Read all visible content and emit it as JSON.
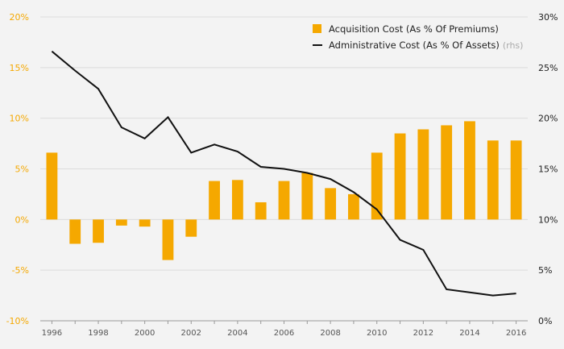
{
  "chart_data": {
    "type": "bar+line",
    "title": "",
    "x": [
      1996,
      1997,
      1998,
      1999,
      2000,
      2001,
      2002,
      2003,
      2004,
      2005,
      2006,
      2007,
      2008,
      2009,
      2010,
      2011,
      2012,
      2013,
      2014,
      2015,
      2016
    ],
    "x_tick_labels": [
      "1996",
      "1998",
      "2000",
      "2002",
      "2004",
      "2006",
      "2008",
      "2010",
      "2012",
      "2014",
      "2016"
    ],
    "series": [
      {
        "name": "Acquisition Cost (As % Of Premiums)",
        "type": "bar",
        "axis": "left",
        "color": "#f5a800",
        "values": [
          6.6,
          -2.4,
          -2.3,
          -0.6,
          -0.7,
          -4.0,
          -1.7,
          3.8,
          3.9,
          1.7,
          3.8,
          4.6,
          3.1,
          2.5,
          6.6,
          8.5,
          8.9,
          9.3,
          9.7,
          7.8,
          7.8
        ]
      },
      {
        "name": "Administrative Cost (As % Of Assets)",
        "name_suffix": "(rhs)",
        "type": "line",
        "axis": "right",
        "color": "#111111",
        "values": [
          26.6,
          24.7,
          22.9,
          19.1,
          18.0,
          20.1,
          16.6,
          17.4,
          16.7,
          15.2,
          15.0,
          14.6,
          14.0,
          12.7,
          11.0,
          8.0,
          7.0,
          3.1,
          2.8,
          2.5,
          2.7
        ]
      }
    ],
    "y_left": {
      "min": -10,
      "max": 20,
      "ticks": [
        -10,
        -5,
        0,
        5,
        10,
        15,
        20
      ],
      "tick_labels": [
        "-10%",
        "-5%",
        "0%",
        "5%",
        "10%",
        "15%",
        "20%"
      ]
    },
    "y_right": {
      "min": 0,
      "max": 30,
      "ticks": [
        0,
        5,
        10,
        15,
        20,
        25,
        30
      ],
      "tick_labels": [
        "0%",
        "5%",
        "10%",
        "15%",
        "20%",
        "25%",
        "30%"
      ]
    },
    "grid": true,
    "legend_position": "top-right"
  }
}
